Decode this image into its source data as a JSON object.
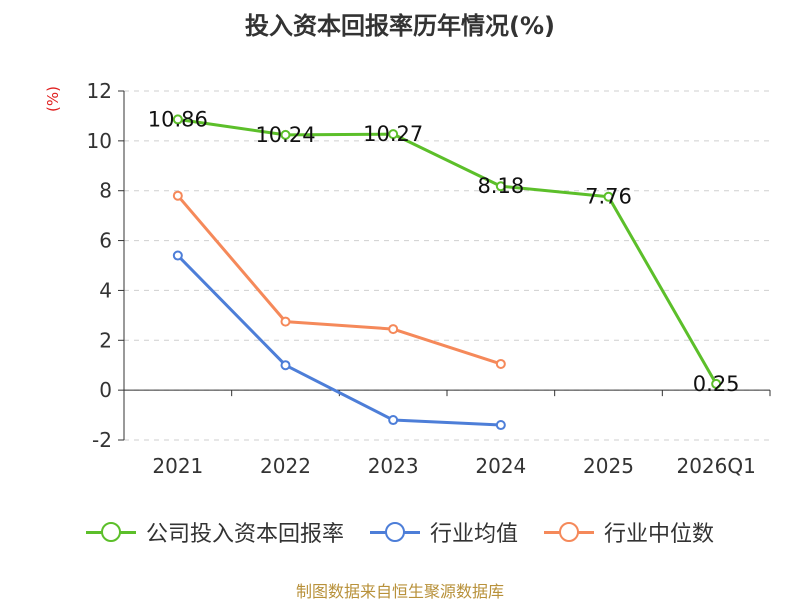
{
  "title": "投入资本回报率历年情况(%)",
  "source": "制图数据来自恒生聚源数据库",
  "chart_data": {
    "type": "line",
    "title": "投入资本回报率历年情况(%)",
    "ylabel": "(%)",
    "xlabel": "",
    "categories": [
      "2021",
      "2022",
      "2023",
      "2024",
      "2025",
      "2026Q1"
    ],
    "ylim": [
      -2,
      12
    ],
    "yticks": [
      -2,
      0,
      2,
      4,
      6,
      8,
      10,
      12
    ],
    "grid": true,
    "legend_position": "bottom",
    "series": [
      {
        "name": "公司投入资本回报率",
        "color": "#5cbf2a",
        "values": [
          10.86,
          10.24,
          10.27,
          8.18,
          7.76,
          0.25
        ],
        "labels": [
          "10.86",
          "10.24",
          "10.27",
          "8.18",
          "7.76",
          "0.25"
        ]
      },
      {
        "name": "行业均值",
        "color": "#4d7ed8",
        "values": [
          5.4,
          1.0,
          -1.2,
          -1.4,
          null,
          null
        ]
      },
      {
        "name": "行业中位数",
        "color": "#f5895a",
        "values": [
          7.8,
          2.75,
          2.45,
          1.05,
          null,
          null
        ]
      }
    ]
  }
}
